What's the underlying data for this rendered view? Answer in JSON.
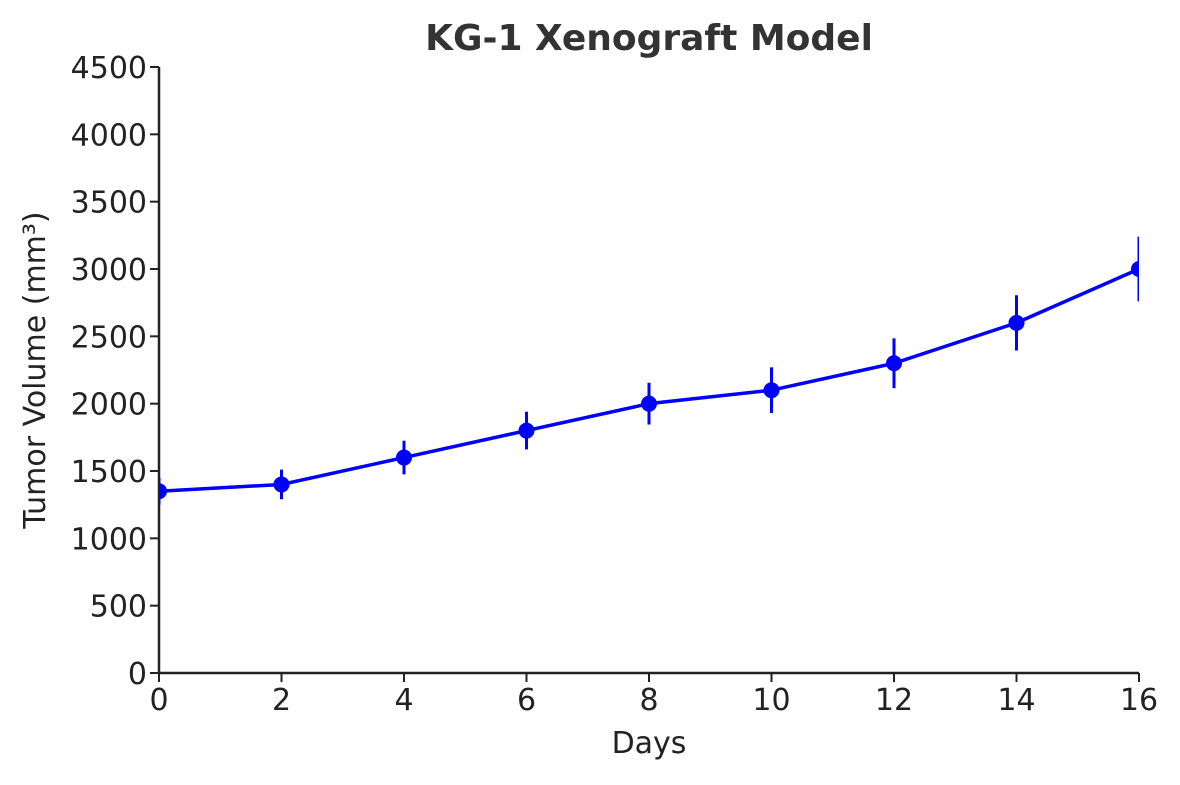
{
  "chart_data": {
    "type": "line",
    "title": "KG-1 Xenograft Model",
    "xlabel": "Days",
    "ylabel": "Tumor Volume (mm³)",
    "xlim": [
      0,
      16
    ],
    "ylim": [
      0,
      4500
    ],
    "xticks": [
      0,
      2,
      4,
      6,
      8,
      10,
      12,
      14,
      16
    ],
    "yticks": [
      0,
      500,
      1000,
      1500,
      2000,
      2500,
      3000,
      3500,
      4000,
      4500
    ],
    "grid": false,
    "x": [
      0,
      2,
      4,
      6,
      8,
      10,
      12,
      14,
      16
    ],
    "series": [
      {
        "values": [
          1350,
          1400,
          1600,
          1800,
          2000,
          2100,
          2300,
          2600,
          3000
        ],
        "errors": [
          100,
          110,
          125,
          140,
          155,
          170,
          185,
          205,
          240
        ],
        "color": "#0000ff"
      }
    ]
  }
}
